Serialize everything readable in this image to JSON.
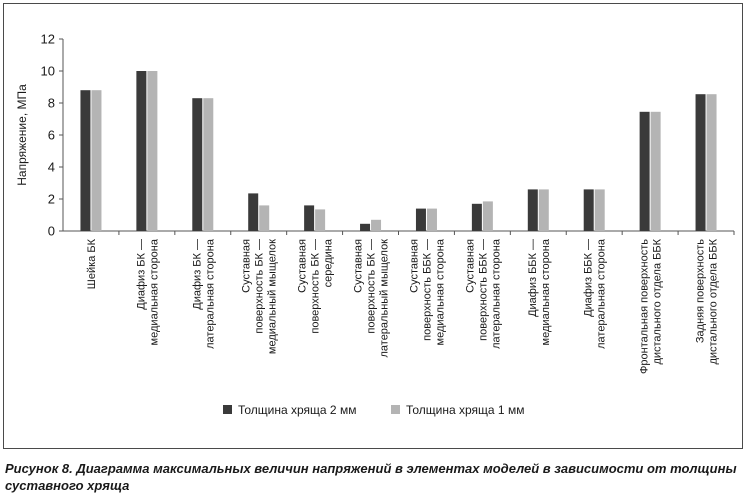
{
  "caption": "Рисунок 8. Диаграмма максимальных величин напряжений в элементах моделей в зависимости от толщины суставного хряща",
  "chart_data": {
    "type": "bar",
    "ylabel": "Напряжение, МПа",
    "xlabel": "",
    "ylim": [
      0,
      12
    ],
    "yticks": [
      0,
      2,
      4,
      6,
      8,
      10,
      12
    ],
    "grid": false,
    "legend_position": "bottom",
    "categories": [
      [
        "Шейка БК"
      ],
      [
        "Диафиз БК —",
        "медиальная сторона"
      ],
      [
        "Диафиз БК —",
        "латеральная сторона"
      ],
      [
        "Суставная",
        "поверхность БК —",
        "медиальный мыщелок"
      ],
      [
        "Суставная",
        "поверхность БК —",
        "середина"
      ],
      [
        "Суставная",
        "поверхность БК —",
        "латеральный мыщелок"
      ],
      [
        "Суставная",
        "поверхность ББК —",
        "медиальная сторона"
      ],
      [
        "Суставная",
        "поверхность ББК —",
        "латеральная сторона"
      ],
      [
        "Диафиз ББК —",
        "медиальная сторона"
      ],
      [
        "Диафиз ББК —",
        "латеральная сторона"
      ],
      [
        "Фронтальная поверхность",
        "дистального отдела ББК"
      ],
      [
        "Задняя поверхность",
        "дистального отдела ББК"
      ]
    ],
    "series": [
      {
        "name": "Толщина хряща 2 мм",
        "color": "#3a3a3a",
        "values": [
          8.8,
          10.0,
          8.3,
          2.35,
          1.6,
          0.45,
          1.4,
          1.7,
          2.6,
          2.6,
          7.45,
          8.55
        ]
      },
      {
        "name": "Толщина хряща 1 мм",
        "color": "#b4b4b4",
        "values": [
          8.8,
          10.0,
          8.3,
          1.6,
          1.35,
          0.7,
          1.4,
          1.85,
          2.6,
          2.6,
          7.45,
          8.55
        ]
      }
    ]
  }
}
